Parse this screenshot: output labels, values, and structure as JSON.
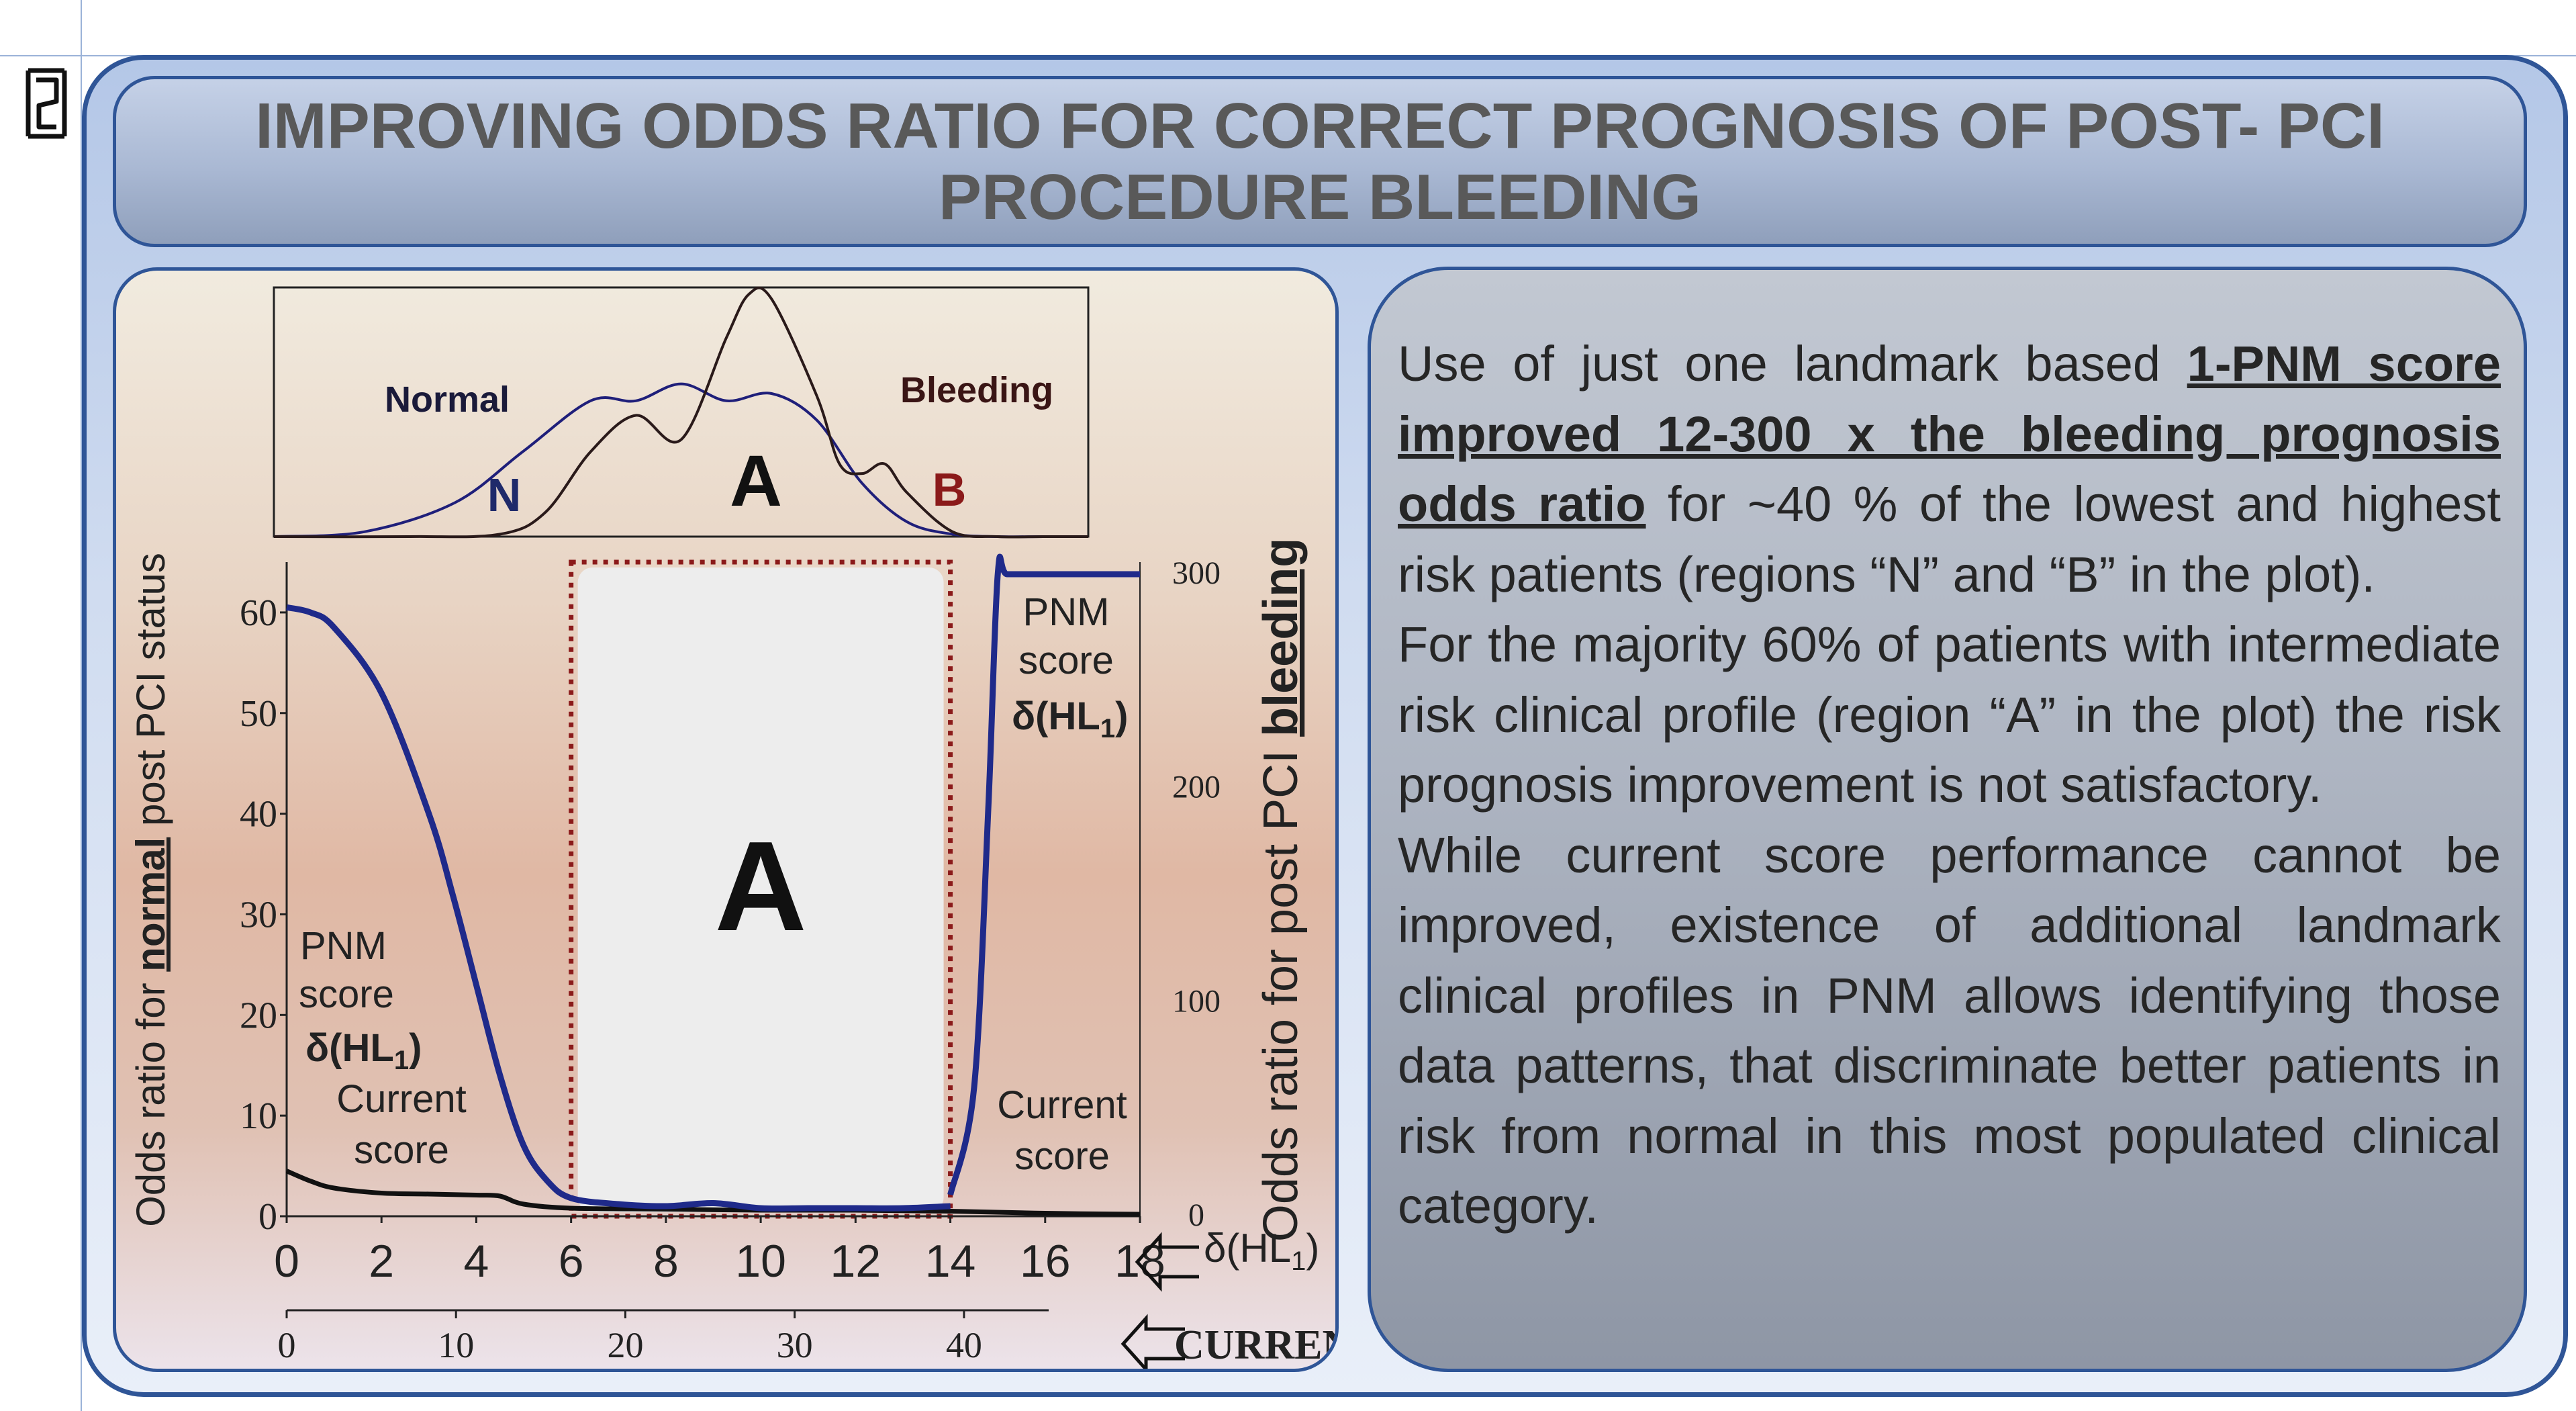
{
  "title": "IMPROVING ODDS RATIO FOR CORRECT PROGNOSIS OF POST- PCI PROCEDURE BLEEDING",
  "text_panel": {
    "p1_pre": "Use of just one landmark based ",
    "p1_bold": "1-PNM score improved 12-300 x the bleeding prognosis odds ratio",
    "p1_post": " for ~40 % of the lowest and highest risk patients (regions “N” and “B” in the plot).",
    "p2": "For the majority 60% of patients with intermediate risk clinical profile (region “A” in the plot)  the risk prognosis improvement is not satisfactory.",
    "p3": "While current score performance cannot be improved, existence of additional landmark clinical profiles in PNM allows identifying those data patterns, that discriminate better patients in risk from normal in this most populated clinical category."
  },
  "chart_data": {
    "type": "line",
    "title": "",
    "distribution_panel": {
      "labels": {
        "normal": "Normal",
        "bleeding": "Bleeding",
        "n": "N",
        "a": "A",
        "b": "B"
      },
      "colors": {
        "normal": "#1f1f7a",
        "bleeding": "#2a1a1a",
        "b_label": "#8b1a1a"
      },
      "series": [
        {
          "name": "Normal",
          "x": [
            0,
            2,
            4,
            5.5,
            7,
            8,
            9,
            10,
            11,
            12,
            13,
            14,
            15,
            16,
            17,
            18
          ],
          "y": [
            0,
            0.02,
            0.14,
            0.35,
            0.56,
            0.56,
            0.63,
            0.56,
            0.59,
            0.48,
            0.22,
            0.06,
            0.01,
            0,
            0,
            0
          ]
        },
        {
          "name": "Bleeding",
          "x": [
            0,
            3,
            5,
            6,
            7,
            8,
            9,
            10,
            10.5,
            11,
            12,
            12.5,
            13,
            13.5,
            14,
            15,
            16,
            17,
            18
          ],
          "y": [
            0,
            0,
            0.01,
            0.1,
            0.35,
            0.5,
            0.4,
            0.82,
            1.0,
            0.98,
            0.58,
            0.3,
            0.26,
            0.3,
            0.18,
            0.02,
            0,
            0,
            0
          ]
        }
      ]
    },
    "odds_panel": {
      "ylabel_left_parts": [
        "Odds ratio for ",
        "normal",
        " post PCI status"
      ],
      "ylabel_right_parts": [
        "Odds ratio for post PCI ",
        "bleeding"
      ],
      "y_left_ticks": [
        "0",
        "10",
        "20",
        "30",
        "40",
        "50",
        "60"
      ],
      "y_right_ticks": [
        "0",
        "100",
        "200",
        "300"
      ],
      "ylim_left": [
        0,
        65
      ],
      "ylim_right": [
        0,
        300
      ],
      "x_ticks": [
        "0",
        "2",
        "4",
        "6",
        "8",
        "10",
        "12",
        "14",
        "16",
        "18"
      ],
      "x2_ticks": [
        "0",
        "10",
        "20",
        "30",
        "40"
      ],
      "xlim": [
        0,
        18
      ],
      "x2lim": [
        0,
        45
      ],
      "x_label": "δ(HL",
      "x_label_sub": "1",
      "x_label_close": ")",
      "x2_label": "CURRENT",
      "region_label": "A",
      "region_x": [
        6,
        14
      ],
      "annotations": {
        "pnm_left": [
          "PNM",
          "score"
        ],
        "pnm_right": [
          "PNM",
          "score"
        ],
        "delta": "δ(HL",
        "delta_sub": "1",
        "delta_close": ")",
        "current_left": [
          "Current",
          "score"
        ],
        "current_right": [
          "Current",
          "score"
        ]
      },
      "colors": {
        "pnm": "#1f2a8a",
        "current": "#111111",
        "region_border": "#8b1a1a",
        "region_fill": "#ededed"
      },
      "series": [
        {
          "name": "PNM score (left)",
          "x": [
            0,
            0.5,
            1,
            2,
            3,
            3.5,
            4,
            4.5,
            5,
            5.5,
            6,
            7,
            8,
            9,
            10,
            11,
            12,
            13,
            14
          ],
          "y": [
            60.5,
            60,
            58.5,
            52,
            40,
            32,
            23,
            14,
            7,
            3.5,
            1.8,
            1.2,
            1.0,
            1.3,
            0.8,
            0.8,
            0.8,
            0.8,
            1.0
          ]
        },
        {
          "name": "PNM score (right)",
          "x": [
            14,
            14.5,
            14.8,
            15,
            15.2,
            16,
            18
          ],
          "y": [
            10,
            60,
            190,
            300,
            300,
            300,
            300
          ]
        },
        {
          "name": "Current score",
          "x": [
            0,
            0.5,
            1,
            2,
            3,
            4,
            4.5,
            5,
            6,
            8,
            10,
            12,
            14,
            16,
            18
          ],
          "y": [
            4.5,
            3.5,
            2.8,
            2.3,
            2.2,
            2.1,
            2.0,
            1.2,
            0.8,
            0.7,
            0.6,
            0.6,
            0.5,
            0.3,
            0.2
          ]
        }
      ]
    }
  }
}
